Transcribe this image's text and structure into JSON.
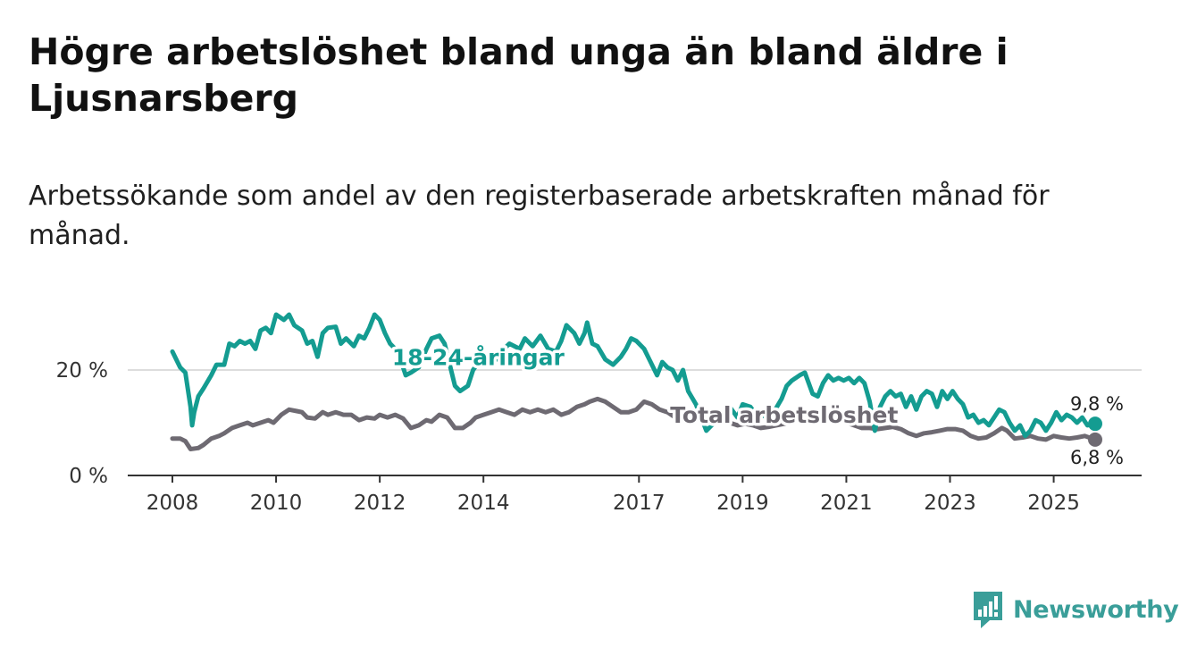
{
  "title": "Högre arbetslöshet bland unga än bland äldre i Ljusnarsberg",
  "subtitle": "Arbetssökande som andel av den registerbaserade arbetskraften månad för månad.",
  "brand": {
    "name": "Newsworthy",
    "icon": "newsworthy-logo-icon",
    "color": "#3a9e99"
  },
  "colors": {
    "young": "#149c91",
    "total": "#6e6a72",
    "grid": "#dddddd",
    "axis": "#333333"
  },
  "chart_data": {
    "type": "line",
    "title": "Högre arbetslöshet bland unga än bland äldre i Ljusnarsberg",
    "ylabel": "",
    "xlabel": "",
    "xlim": [
      2008.0,
      2025.8
    ],
    "ylim": [
      0,
      30
    ],
    "yticks": [
      {
        "value": 0,
        "label": "0 %"
      },
      {
        "value": 20,
        "label": "20 %"
      }
    ],
    "xticks": [
      {
        "value": 2008,
        "label": "2008"
      },
      {
        "value": 2010,
        "label": "2010"
      },
      {
        "value": 2012,
        "label": "2012"
      },
      {
        "value": 2014,
        "label": "2014"
      },
      {
        "value": 2017,
        "label": "2017"
      },
      {
        "value": 2019,
        "label": "2019"
      },
      {
        "value": 2021,
        "label": "2021"
      },
      {
        "value": 2023,
        "label": "2023"
      },
      {
        "value": 2025,
        "label": "2025"
      }
    ],
    "series": [
      {
        "name": "18-24-åringar",
        "color_key": "young",
        "end_label": "9,8 %",
        "points": [
          [
            2008.0,
            23.5
          ],
          [
            2008.15,
            20.5
          ],
          [
            2008.25,
            19.5
          ],
          [
            2008.35,
            13.0
          ],
          [
            2008.38,
            9.5
          ],
          [
            2008.42,
            12.0
          ],
          [
            2008.5,
            15.0
          ],
          [
            2008.6,
            16.5
          ],
          [
            2008.75,
            19.0
          ],
          [
            2008.85,
            21.0
          ],
          [
            2009.0,
            21.0
          ],
          [
            2009.1,
            25.0
          ],
          [
            2009.2,
            24.5
          ],
          [
            2009.3,
            25.5
          ],
          [
            2009.4,
            25.0
          ],
          [
            2009.5,
            25.5
          ],
          [
            2009.6,
            24.0
          ],
          [
            2009.7,
            27.5
          ],
          [
            2009.8,
            28.0
          ],
          [
            2009.9,
            27.0
          ],
          [
            2010.0,
            30.5
          ],
          [
            2010.15,
            29.5
          ],
          [
            2010.25,
            30.5
          ],
          [
            2010.35,
            28.5
          ],
          [
            2010.5,
            27.5
          ],
          [
            2010.6,
            25.0
          ],
          [
            2010.7,
            25.5
          ],
          [
            2010.8,
            22.5
          ],
          [
            2010.9,
            27.0
          ],
          [
            2011.0,
            28.0
          ],
          [
            2011.15,
            28.2
          ],
          [
            2011.25,
            25.0
          ],
          [
            2011.35,
            26.0
          ],
          [
            2011.5,
            24.5
          ],
          [
            2011.6,
            26.5
          ],
          [
            2011.7,
            26.0
          ],
          [
            2011.8,
            28.0
          ],
          [
            2011.9,
            30.5
          ],
          [
            2012.0,
            29.5
          ],
          [
            2012.1,
            27.0
          ],
          [
            2012.2,
            25.0
          ],
          [
            2012.3,
            24.0
          ],
          [
            2012.4,
            22.0
          ],
          [
            2012.5,
            19.0
          ],
          [
            2012.6,
            19.5
          ],
          [
            2012.75,
            20.5
          ],
          [
            2012.9,
            24.0
          ],
          [
            2013.0,
            26.0
          ],
          [
            2013.15,
            26.5
          ],
          [
            2013.25,
            25.0
          ],
          [
            2013.35,
            21.0
          ],
          [
            2013.45,
            17.0
          ],
          [
            2013.55,
            16.0
          ],
          [
            2013.7,
            17.0
          ],
          [
            2013.8,
            20.0
          ],
          [
            2013.95,
            22.0
          ],
          [
            2014.1,
            21.5
          ],
          [
            2014.25,
            22.0
          ],
          [
            2014.4,
            24.0
          ],
          [
            2014.5,
            25.0
          ],
          [
            2014.7,
            24.0
          ],
          [
            2014.8,
            26.0
          ],
          [
            2014.95,
            24.5
          ],
          [
            2015.1,
            26.5
          ],
          [
            2015.25,
            24.0
          ],
          [
            2015.4,
            23.5
          ],
          [
            2015.5,
            25.5
          ],
          [
            2015.6,
            28.5
          ],
          [
            2015.75,
            27.0
          ],
          [
            2015.85,
            25.0
          ],
          [
            2015.95,
            27.0
          ],
          [
            2016.0,
            29.0
          ],
          [
            2016.1,
            25.0
          ],
          [
            2016.2,
            24.5
          ],
          [
            2016.35,
            22.0
          ],
          [
            2016.5,
            21.0
          ],
          [
            2016.65,
            22.5
          ],
          [
            2016.75,
            24.0
          ],
          [
            2016.85,
            26.0
          ],
          [
            2016.95,
            25.5
          ],
          [
            2017.1,
            24.0
          ],
          [
            2017.2,
            22.0
          ],
          [
            2017.35,
            19.0
          ],
          [
            2017.45,
            21.5
          ],
          [
            2017.55,
            20.5
          ],
          [
            2017.65,
            20.0
          ],
          [
            2017.75,
            18.0
          ],
          [
            2017.85,
            20.0
          ],
          [
            2017.95,
            16.0
          ],
          [
            2018.1,
            13.5
          ],
          [
            2018.2,
            11.0
          ],
          [
            2018.3,
            8.5
          ],
          [
            2018.45,
            10.0
          ],
          [
            2018.6,
            12.0
          ],
          [
            2018.75,
            13.0
          ],
          [
            2018.9,
            11.0
          ],
          [
            2019.0,
            13.5
          ],
          [
            2019.15,
            13.0
          ],
          [
            2019.3,
            11.0
          ],
          [
            2019.45,
            11.5
          ],
          [
            2019.6,
            12.0
          ],
          [
            2019.75,
            14.5
          ],
          [
            2019.85,
            17.0
          ],
          [
            2019.95,
            18.0
          ],
          [
            2020.1,
            19.0
          ],
          [
            2020.2,
            19.5
          ],
          [
            2020.35,
            15.5
          ],
          [
            2020.45,
            15.0
          ],
          [
            2020.55,
            17.5
          ],
          [
            2020.65,
            19.0
          ],
          [
            2020.75,
            18.0
          ],
          [
            2020.85,
            18.5
          ],
          [
            2020.95,
            18.0
          ],
          [
            2021.05,
            18.5
          ],
          [
            2021.15,
            17.5
          ],
          [
            2021.25,
            18.5
          ],
          [
            2021.35,
            17.5
          ],
          [
            2021.45,
            14.0
          ],
          [
            2021.55,
            8.5
          ],
          [
            2021.65,
            13.0
          ],
          [
            2021.75,
            15.0
          ],
          [
            2021.85,
            16.0
          ],
          [
            2021.95,
            15.0
          ],
          [
            2022.05,
            15.5
          ],
          [
            2022.15,
            13.0
          ],
          [
            2022.25,
            15.0
          ],
          [
            2022.35,
            12.5
          ],
          [
            2022.45,
            15.0
          ],
          [
            2022.55,
            16.0
          ],
          [
            2022.65,
            15.5
          ],
          [
            2022.75,
            13.0
          ],
          [
            2022.85,
            16.0
          ],
          [
            2022.95,
            14.5
          ],
          [
            2023.05,
            16.0
          ],
          [
            2023.15,
            14.5
          ],
          [
            2023.25,
            13.5
          ],
          [
            2023.35,
            11.0
          ],
          [
            2023.45,
            11.5
          ],
          [
            2023.55,
            10.0
          ],
          [
            2023.65,
            10.5
          ],
          [
            2023.75,
            9.5
          ],
          [
            2023.85,
            11.0
          ],
          [
            2023.95,
            12.5
          ],
          [
            2024.05,
            12.0
          ],
          [
            2024.15,
            10.0
          ],
          [
            2024.25,
            8.5
          ],
          [
            2024.35,
            9.5
          ],
          [
            2024.45,
            7.5
          ],
          [
            2024.55,
            8.5
          ],
          [
            2024.65,
            10.5
          ],
          [
            2024.75,
            10.0
          ],
          [
            2024.85,
            8.5
          ],
          [
            2024.95,
            10.0
          ],
          [
            2025.05,
            12.0
          ],
          [
            2025.15,
            10.5
          ],
          [
            2025.25,
            11.5
          ],
          [
            2025.35,
            11.0
          ],
          [
            2025.45,
            10.0
          ],
          [
            2025.55,
            11.0
          ],
          [
            2025.65,
            9.5
          ],
          [
            2025.8,
            9.8
          ]
        ]
      },
      {
        "name": "Total arbetslöshet",
        "color_key": "total",
        "end_label": "6,8 %",
        "points": [
          [
            2008.0,
            7.0
          ],
          [
            2008.15,
            7.0
          ],
          [
            2008.25,
            6.5
          ],
          [
            2008.35,
            5.0
          ],
          [
            2008.5,
            5.2
          ],
          [
            2008.6,
            5.8
          ],
          [
            2008.75,
            7.0
          ],
          [
            2008.9,
            7.5
          ],
          [
            2009.0,
            8.0
          ],
          [
            2009.15,
            9.0
          ],
          [
            2009.3,
            9.5
          ],
          [
            2009.45,
            10.0
          ],
          [
            2009.55,
            9.5
          ],
          [
            2009.7,
            10.0
          ],
          [
            2009.85,
            10.5
          ],
          [
            2009.95,
            10.0
          ],
          [
            2010.1,
            11.5
          ],
          [
            2010.25,
            12.5
          ],
          [
            2010.4,
            12.2
          ],
          [
            2010.5,
            12.0
          ],
          [
            2010.6,
            11.0
          ],
          [
            2010.75,
            10.8
          ],
          [
            2010.9,
            12.0
          ],
          [
            2011.0,
            11.5
          ],
          [
            2011.15,
            12.0
          ],
          [
            2011.3,
            11.5
          ],
          [
            2011.45,
            11.5
          ],
          [
            2011.6,
            10.5
          ],
          [
            2011.75,
            11.0
          ],
          [
            2011.9,
            10.8
          ],
          [
            2012.0,
            11.5
          ],
          [
            2012.15,
            11.0
          ],
          [
            2012.3,
            11.5
          ],
          [
            2012.45,
            10.8
          ],
          [
            2012.6,
            9.0
          ],
          [
            2012.75,
            9.5
          ],
          [
            2012.9,
            10.5
          ],
          [
            2013.0,
            10.2
          ],
          [
            2013.15,
            11.5
          ],
          [
            2013.3,
            11.0
          ],
          [
            2013.45,
            9.0
          ],
          [
            2013.6,
            9.0
          ],
          [
            2013.75,
            10.0
          ],
          [
            2013.85,
            11.0
          ],
          [
            2014.0,
            11.5
          ],
          [
            2014.15,
            12.0
          ],
          [
            2014.3,
            12.5
          ],
          [
            2014.45,
            12.0
          ],
          [
            2014.6,
            11.5
          ],
          [
            2014.75,
            12.5
          ],
          [
            2014.9,
            12.0
          ],
          [
            2015.05,
            12.5
          ],
          [
            2015.2,
            12.0
          ],
          [
            2015.35,
            12.5
          ],
          [
            2015.5,
            11.5
          ],
          [
            2015.65,
            12.0
          ],
          [
            2015.8,
            13.0
          ],
          [
            2015.95,
            13.5
          ],
          [
            2016.05,
            14.0
          ],
          [
            2016.2,
            14.5
          ],
          [
            2016.35,
            14.0
          ],
          [
            2016.5,
            13.0
          ],
          [
            2016.65,
            12.0
          ],
          [
            2016.8,
            12.0
          ],
          [
            2016.95,
            12.5
          ],
          [
            2017.1,
            14.0
          ],
          [
            2017.25,
            13.5
          ],
          [
            2017.4,
            12.5
          ],
          [
            2017.55,
            12.0
          ],
          [
            2017.7,
            11.0
          ],
          [
            2017.85,
            11.5
          ],
          [
            2018.0,
            11.0
          ],
          [
            2018.15,
            10.5
          ],
          [
            2018.3,
            11.0
          ],
          [
            2018.45,
            10.0
          ],
          [
            2018.6,
            10.5
          ],
          [
            2018.75,
            10.0
          ],
          [
            2018.9,
            9.5
          ],
          [
            2019.05,
            9.8
          ],
          [
            2019.2,
            9.5
          ],
          [
            2019.35,
            9.0
          ],
          [
            2019.5,
            9.2
          ],
          [
            2019.65,
            9.5
          ],
          [
            2019.8,
            9.8
          ],
          [
            2019.95,
            10.0
          ],
          [
            2020.1,
            10.5
          ],
          [
            2020.25,
            11.0
          ],
          [
            2020.4,
            10.5
          ],
          [
            2020.55,
            10.0
          ],
          [
            2020.7,
            10.8
          ],
          [
            2020.85,
            10.5
          ],
          [
            2021.0,
            10.0
          ],
          [
            2021.15,
            9.5
          ],
          [
            2021.3,
            9.0
          ],
          [
            2021.45,
            9.0
          ],
          [
            2021.6,
            8.8
          ],
          [
            2021.75,
            9.0
          ],
          [
            2021.9,
            9.2
          ],
          [
            2022.05,
            8.8
          ],
          [
            2022.2,
            8.0
          ],
          [
            2022.35,
            7.5
          ],
          [
            2022.5,
            8.0
          ],
          [
            2022.65,
            8.2
          ],
          [
            2022.8,
            8.5
          ],
          [
            2022.95,
            8.8
          ],
          [
            2023.1,
            8.8
          ],
          [
            2023.25,
            8.5
          ],
          [
            2023.4,
            7.5
          ],
          [
            2023.55,
            7.0
          ],
          [
            2023.7,
            7.2
          ],
          [
            2023.85,
            8.0
          ],
          [
            2024.0,
            9.0
          ],
          [
            2024.1,
            8.5
          ],
          [
            2024.25,
            7.0
          ],
          [
            2024.4,
            7.2
          ],
          [
            2024.55,
            7.5
          ],
          [
            2024.7,
            7.0
          ],
          [
            2024.85,
            6.8
          ],
          [
            2025.0,
            7.5
          ],
          [
            2025.15,
            7.2
          ],
          [
            2025.3,
            7.0
          ],
          [
            2025.45,
            7.2
          ],
          [
            2025.6,
            7.5
          ],
          [
            2025.8,
            6.8
          ]
        ]
      }
    ],
    "annotations": [
      {
        "text": "18-24-åringar",
        "series": "18-24-åringar",
        "at": [
          2013.9,
          22.5
        ]
      },
      {
        "text": "Total arbetslöshet",
        "series": "Total arbetslöshet",
        "at": [
          2019.8,
          11.5
        ]
      }
    ]
  }
}
